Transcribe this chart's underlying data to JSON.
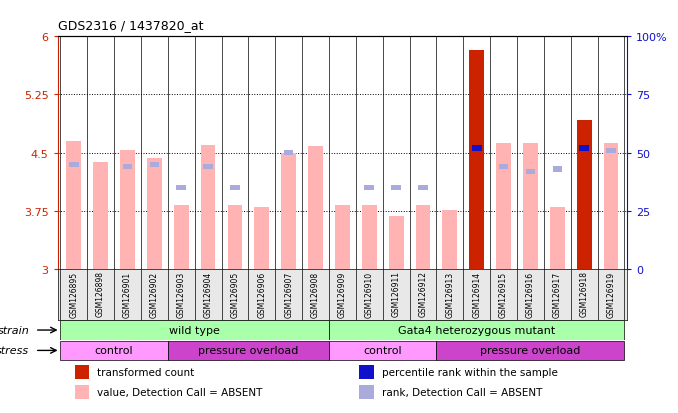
{
  "title": "GDS2316 / 1437820_at",
  "samples": [
    "GSM126895",
    "GSM126898",
    "GSM126901",
    "GSM126902",
    "GSM126903",
    "GSM126904",
    "GSM126905",
    "GSM126906",
    "GSM126907",
    "GSM126908",
    "GSM126909",
    "GSM126910",
    "GSM126911",
    "GSM126912",
    "GSM126913",
    "GSM126914",
    "GSM126915",
    "GSM126916",
    "GSM126917",
    "GSM126918",
    "GSM126919"
  ],
  "bar_values": [
    4.65,
    4.38,
    4.53,
    4.43,
    3.83,
    4.6,
    3.83,
    3.8,
    4.5,
    4.58,
    3.82,
    3.82,
    3.68,
    3.82,
    3.76,
    5.82,
    4.63,
    4.63,
    3.8,
    4.92,
    4.63
  ],
  "bar_colors": [
    "#ffb3b3",
    "#ffb3b3",
    "#ffb3b3",
    "#ffb3b3",
    "#ffb3b3",
    "#ffb3b3",
    "#ffb3b3",
    "#ffb3b3",
    "#ffb3b3",
    "#ffb3b3",
    "#ffb3b3",
    "#ffb3b3",
    "#ffb3b3",
    "#ffb3b3",
    "#ffb3b3",
    "#cc2200",
    "#ffb3b3",
    "#ffb3b3",
    "#ffb3b3",
    "#cc2200",
    "#ffb3b3"
  ],
  "rank_values": [
    45,
    null,
    44,
    45,
    35,
    44,
    35,
    null,
    50,
    null,
    null,
    35,
    35,
    35,
    null,
    52,
    44,
    42,
    43,
    52,
    51
  ],
  "rank_colors": [
    "#aaaadd",
    "#aaaadd",
    "#aaaadd",
    "#aaaadd",
    "#aaaadd",
    "#aaaadd",
    "#aaaadd",
    "#aaaadd",
    "#aaaadd",
    "#aaaadd",
    "#aaaadd",
    "#aaaadd",
    "#aaaadd",
    "#aaaadd",
    "#aaaadd",
    "#1111cc",
    "#aaaadd",
    "#aaaadd",
    "#aaaadd",
    "#1111cc",
    "#aaaadd"
  ],
  "ylim_left": [
    3.0,
    6.0
  ],
  "ylim_right": [
    0,
    100
  ],
  "yticks_left": [
    3.0,
    3.75,
    4.5,
    5.25,
    6.0
  ],
  "yticks_right": [
    0,
    25,
    50,
    75,
    100
  ],
  "ytick_labels_left": [
    "3",
    "3.75",
    "4.5",
    "5.25",
    "6"
  ],
  "ytick_labels_right": [
    "0",
    "25",
    "50",
    "75",
    "100%"
  ],
  "hlines": [
    3.75,
    4.5,
    5.25
  ],
  "strain_groups": [
    {
      "text": "wild type",
      "start": 0,
      "end": 10,
      "color": "#aaffaa"
    },
    {
      "text": "Gata4 heterozygous mutant",
      "start": 10,
      "end": 21,
      "color": "#aaffaa"
    }
  ],
  "stress_groups": [
    {
      "text": "control",
      "start": 0,
      "end": 4,
      "color": "#ff99ff"
    },
    {
      "text": "pressure overload",
      "start": 4,
      "end": 10,
      "color": "#dd55dd"
    },
    {
      "text": "control",
      "start": 10,
      "end": 14,
      "color": "#ff99ff"
    },
    {
      "text": "pressure overload",
      "start": 14,
      "end": 21,
      "color": "#dd55dd"
    }
  ],
  "legend_items": [
    {
      "color": "#cc2200",
      "label": "transformed count"
    },
    {
      "color": "#1111cc",
      "label": "percentile rank within the sample"
    },
    {
      "color": "#ffb3b3",
      "label": "value, Detection Call = ABSENT"
    },
    {
      "color": "#aaaadd",
      "label": "rank, Detection Call = ABSENT"
    }
  ],
  "bar_width": 0.55,
  "base_value": 3.0,
  "left_label_color": "#cc2200",
  "right_label_color": "#1111cc",
  "bg_color": "#e8e8e8",
  "plot_bg": "#ffffff"
}
